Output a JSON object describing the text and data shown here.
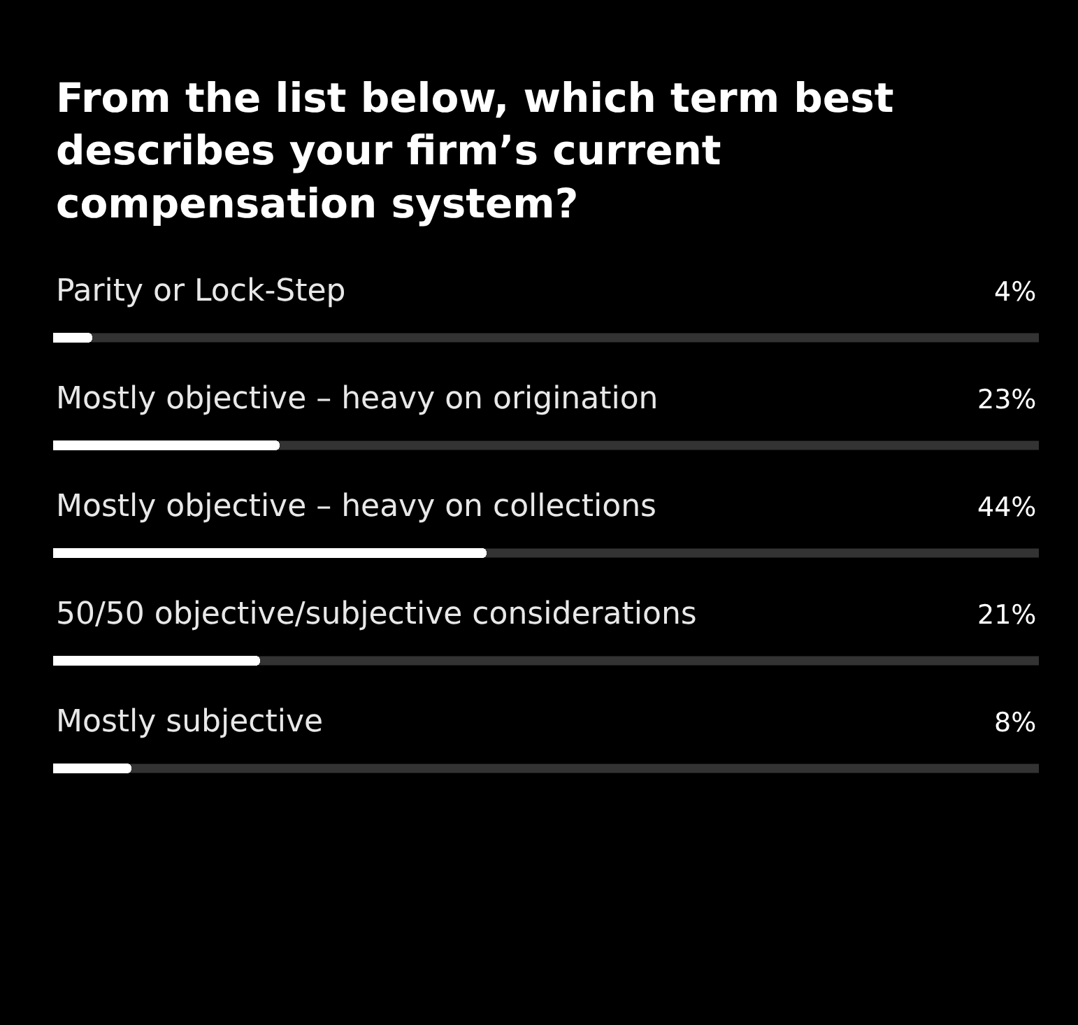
{
  "chart_data": {
    "type": "bar",
    "orientation": "horizontal",
    "title": "From the list below, which term best\ndescribes your firm’s current\ncompensation system?",
    "categories": [
      "Parity or Lock-Step",
      "Mostly objective – heavy on origination",
      "Mostly objective – heavy on collections",
      "50/50 objective/subjective considerations",
      "Mostly subjective"
    ],
    "values": [
      4,
      23,
      44,
      21,
      8
    ],
    "value_labels": [
      "4%",
      "23%",
      "44%",
      "21%",
      "8%"
    ],
    "color": "#ffffff",
    "xlim": [
      0,
      100
    ],
    "tick_labels": false
  }
}
